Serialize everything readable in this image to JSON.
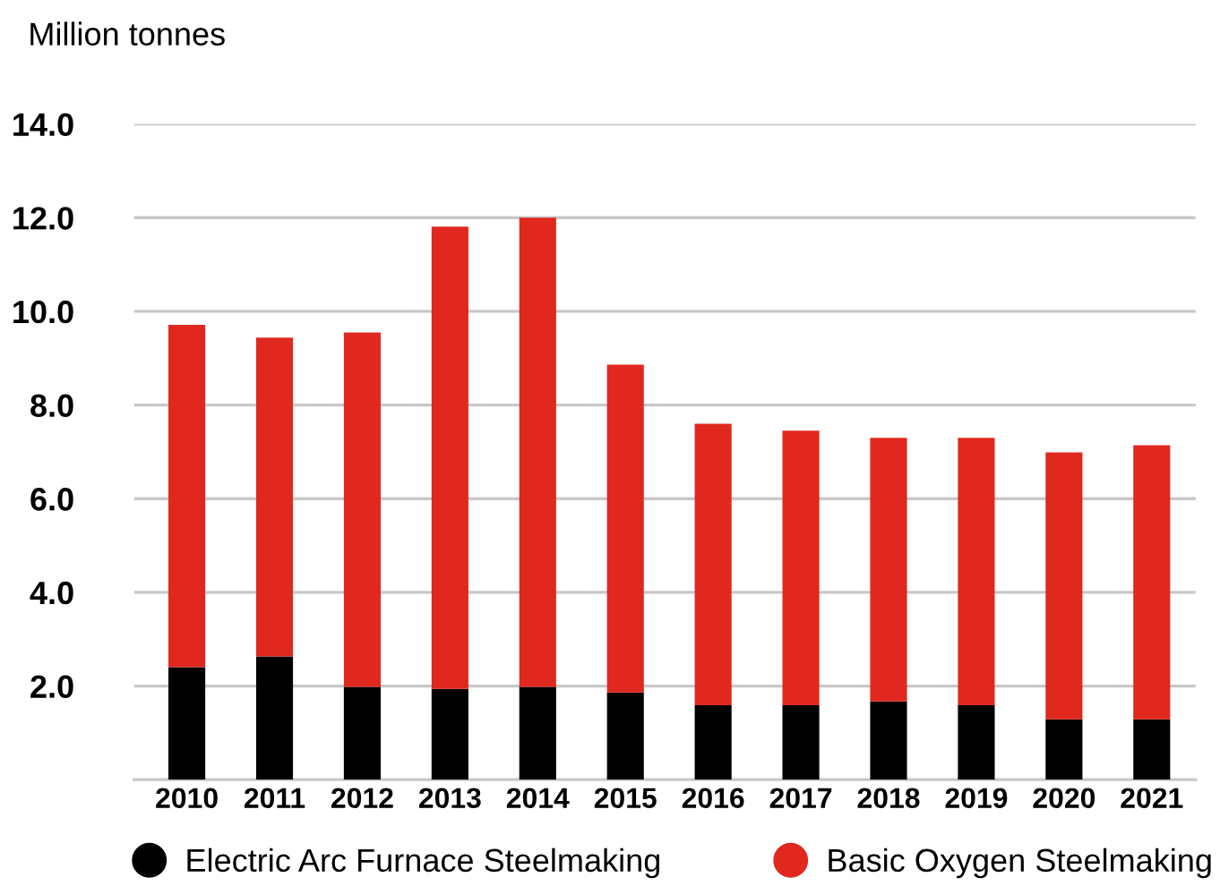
{
  "chart_data": {
    "type": "bar",
    "stacked": true,
    "ylabel": "Million tonnes",
    "categories": [
      "2010",
      "2011",
      "2012",
      "2013",
      "2014",
      "2015",
      "2016",
      "2017",
      "2018",
      "2019",
      "2020",
      "2021"
    ],
    "series": [
      {
        "name": "Electric Arc Furnace Steelmaking",
        "color": "#000000",
        "values": [
          2.4,
          2.63,
          1.98,
          1.94,
          1.98,
          1.86,
          1.59,
          1.59,
          1.67,
          1.59,
          1.29,
          1.29
        ]
      },
      {
        "name": "Basic Oxygen Steelmaking",
        "color": "#e0281e",
        "values": [
          7.31,
          6.81,
          7.57,
          9.87,
          10.02,
          7.0,
          6.01,
          5.86,
          5.63,
          5.71,
          5.7,
          5.85
        ]
      }
    ],
    "ylim": [
      0,
      14
    ],
    "yticks": [
      {
        "value": 2,
        "label": "2.0"
      },
      {
        "value": 4,
        "label": "4.0"
      },
      {
        "value": 6,
        "label": "6.0"
      },
      {
        "value": 8,
        "label": "8.0"
      },
      {
        "value": 10,
        "label": "10.0"
      },
      {
        "value": 12,
        "label": "12.0"
      },
      {
        "value": 14,
        "label": "14.0"
      }
    ],
    "grid": "y",
    "legend": "bottom"
  }
}
